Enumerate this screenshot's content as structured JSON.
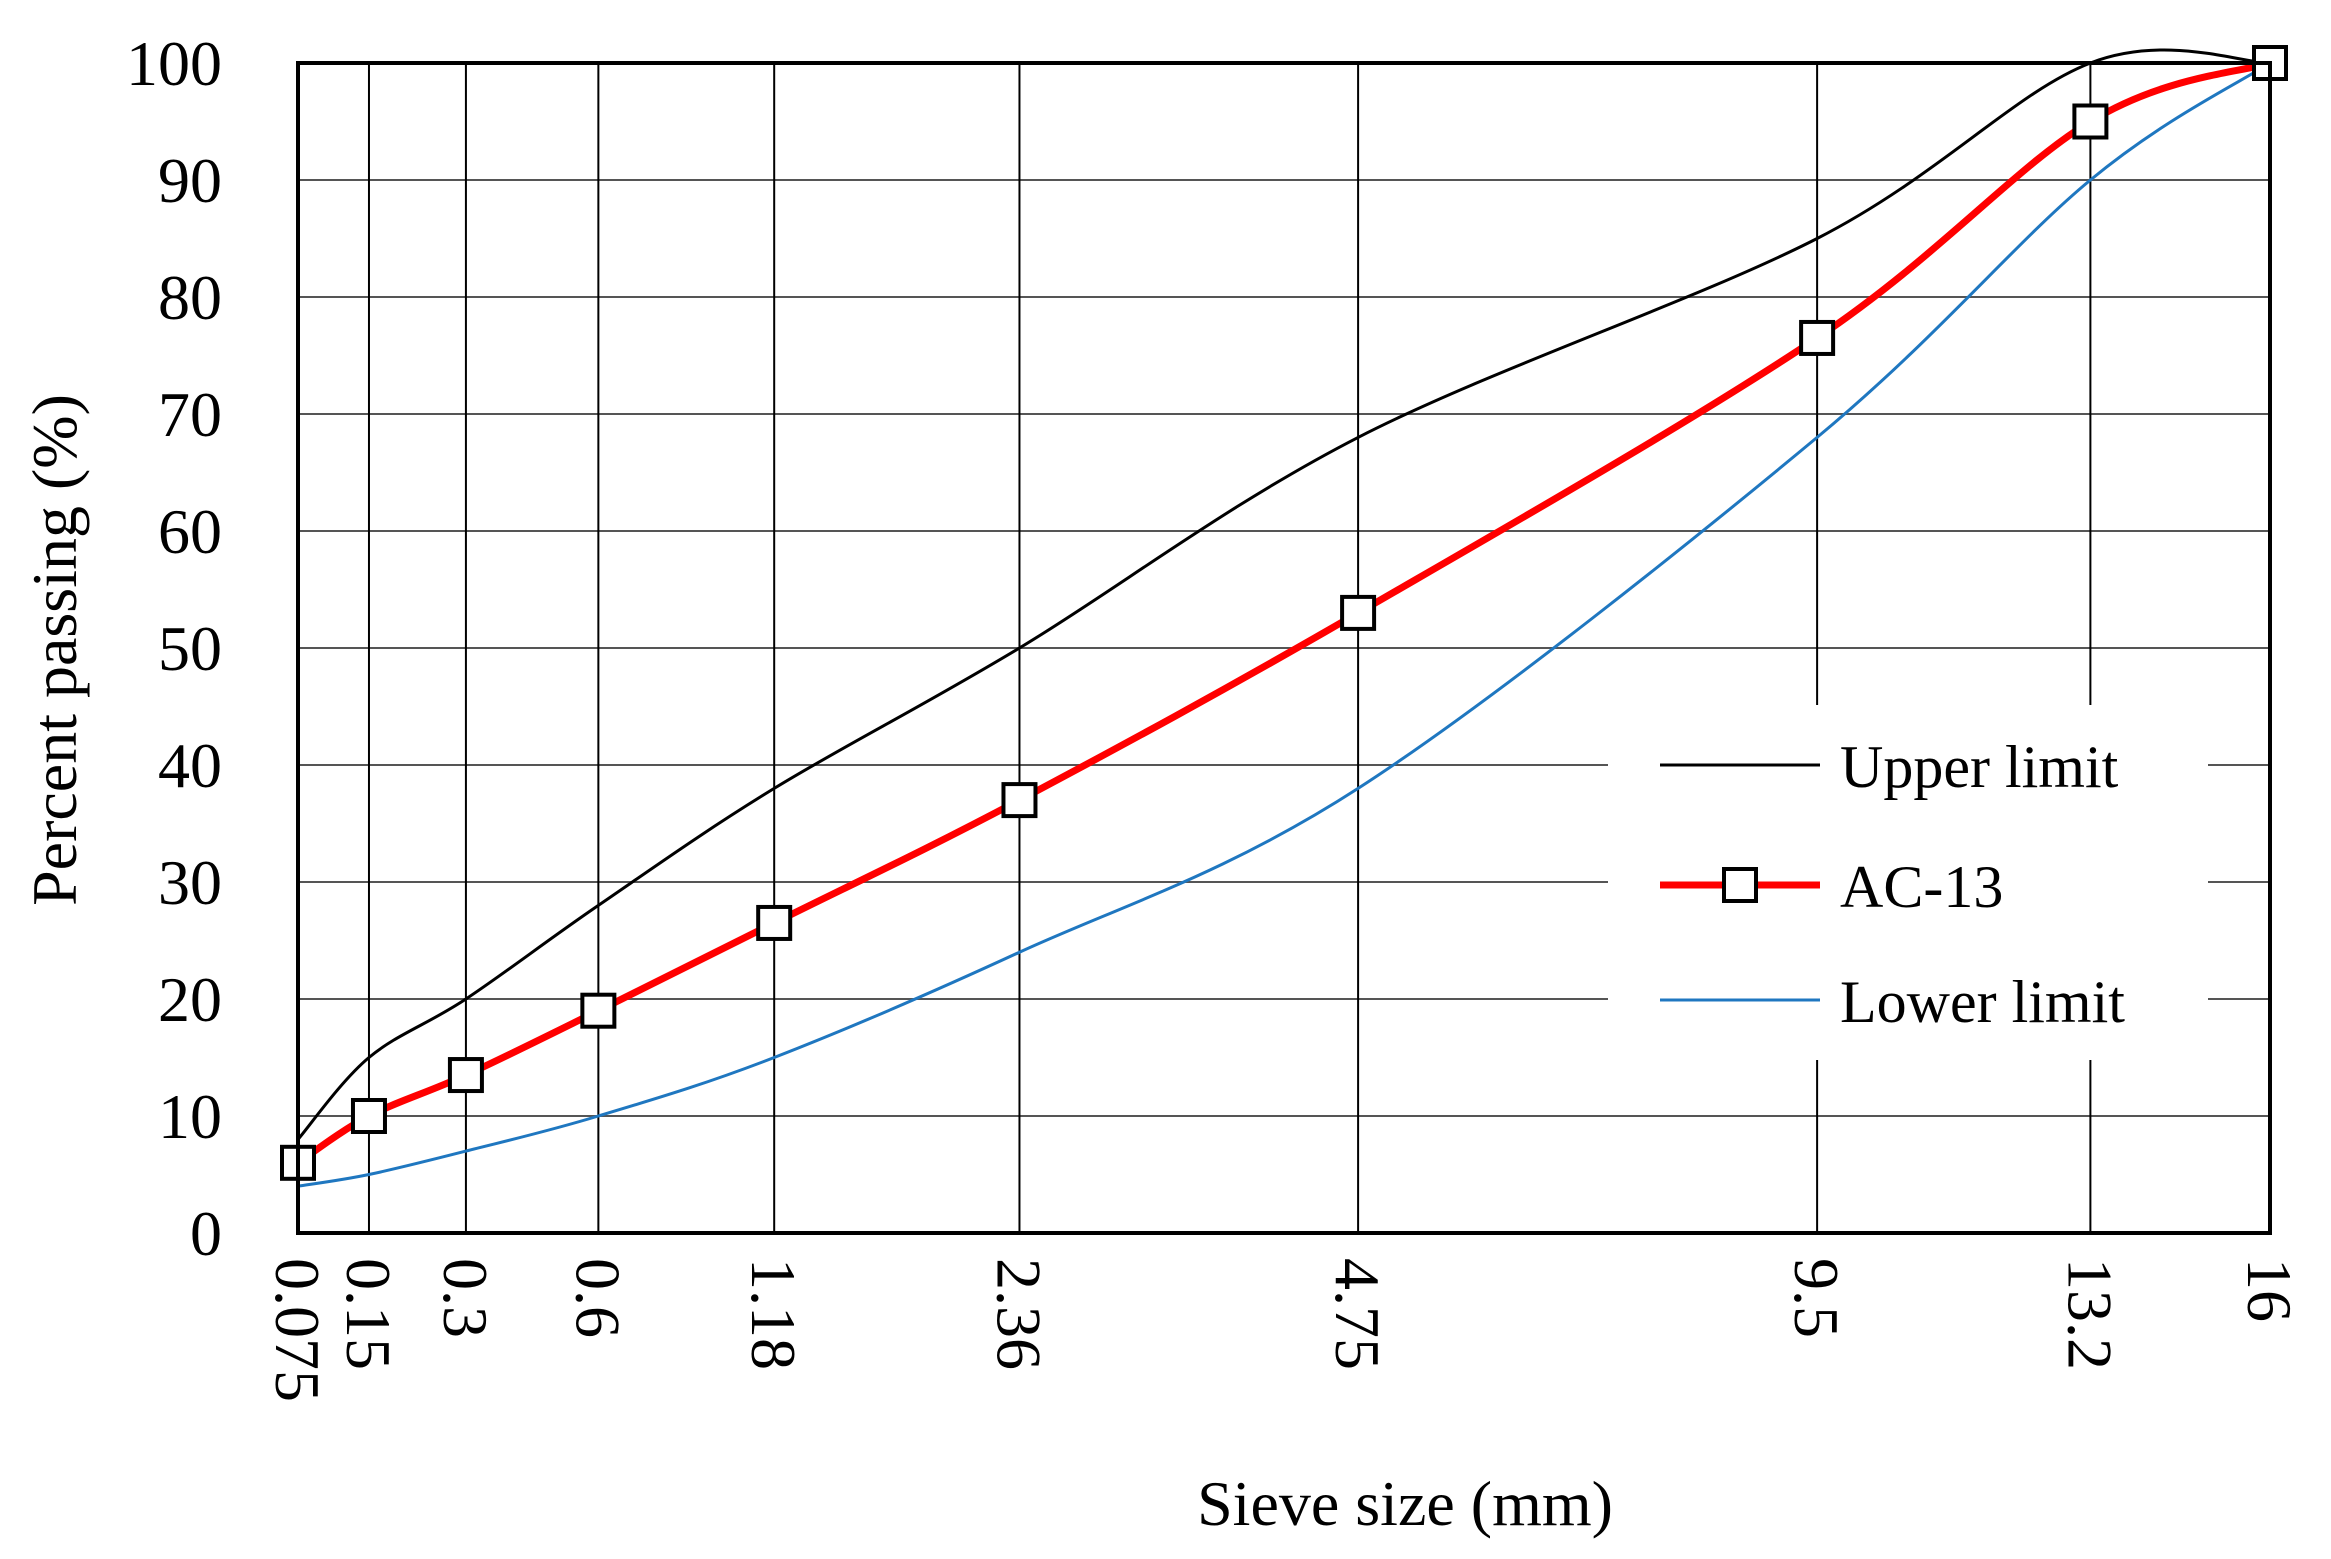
{
  "chart_data": {
    "type": "line",
    "xlabel": "Sieve size (mm)",
    "ylabel": "Percent passing (%)",
    "x_scale": "sieve size raised to the 0.45 power",
    "ylim": [
      0,
      100
    ],
    "grid": true,
    "legend_position": "right-middle",
    "categories": [
      "0.075",
      "0.15",
      "0.3",
      "0.6",
      "1.18",
      "2.36",
      "4.75",
      "9.5",
      "13.2",
      "16"
    ],
    "x": [
      0.075,
      0.15,
      0.3,
      0.6,
      1.18,
      2.36,
      4.75,
      9.5,
      13.2,
      16
    ],
    "yticks": [
      0,
      10,
      20,
      30,
      40,
      50,
      60,
      70,
      80,
      90,
      100
    ],
    "series": [
      {
        "name": "Upper limit",
        "color": "#000000",
        "marker": "none",
        "values": [
          8,
          15,
          20,
          28,
          38,
          50,
          68,
          85,
          100,
          100
        ]
      },
      {
        "name": "AC-13",
        "color": "#ff0000",
        "marker": "open-square",
        "values": [
          6,
          10,
          13.5,
          19,
          26.5,
          37,
          53,
          76.5,
          95,
          100
        ]
      },
      {
        "name": "Lower limit",
        "color": "#1f77c0",
        "marker": "none",
        "values": [
          4,
          5,
          7,
          10,
          15,
          24,
          38,
          68,
          90,
          100
        ]
      }
    ]
  }
}
